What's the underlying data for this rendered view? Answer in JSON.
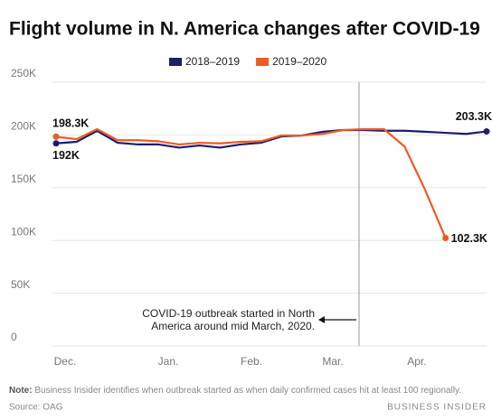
{
  "chart_data": {
    "type": "line",
    "title": "Flight volume in N. America changes after COVID-19",
    "x": [
      0,
      1,
      2,
      3,
      4,
      5,
      6,
      7,
      8,
      9,
      10,
      11,
      12,
      13,
      14,
      15,
      16,
      17,
      18,
      19,
      20,
      21
    ],
    "xlim": [
      0,
      21
    ],
    "xticks": [
      {
        "value": 0.44,
        "label": "Dec."
      },
      {
        "value": 5.47,
        "label": "Jan."
      },
      {
        "value": 9.53,
        "label": "Feb."
      },
      {
        "value": 13.5,
        "label": "Mar."
      },
      {
        "value": 17.6,
        "label": "Apr."
      }
    ],
    "ylim": [
      0,
      250000
    ],
    "yticks": [
      {
        "value": 0,
        "label": "0"
      },
      {
        "value": 50000,
        "label": "50K"
      },
      {
        "value": 100000,
        "label": "100K"
      },
      {
        "value": 150000,
        "label": "150K"
      },
      {
        "value": 200000,
        "label": "200K"
      },
      {
        "value": 250000,
        "label": "250K"
      }
    ],
    "grid": true,
    "legend": "top",
    "series": [
      {
        "name": "2018–2019",
        "color": "#1b1e6e",
        "values": [
          192000,
          193500,
          203800,
          192600,
          191000,
          191000,
          188000,
          190000,
          188000,
          191000,
          192600,
          198600,
          199500,
          203000,
          204600,
          204600,
          204000,
          204000,
          203000,
          202000,
          201000,
          203300
        ],
        "value_labels": [
          "192K",
          null,
          null,
          null,
          null,
          null,
          null,
          null,
          null,
          null,
          null,
          null,
          null,
          null,
          null,
          null,
          null,
          null,
          null,
          null,
          null,
          "203.3K"
        ]
      },
      {
        "name": "2019–2020",
        "color": "#ee5a24",
        "values": [
          198300,
          196000,
          205500,
          195000,
          195000,
          194000,
          191000,
          192600,
          192000,
          193500,
          194000,
          199500,
          199500,
          201000,
          204600,
          205500,
          205500,
          189000,
          148000,
          102300,
          null,
          null
        ],
        "value_labels": [
          "198.3K",
          null,
          null,
          null,
          null,
          null,
          null,
          null,
          null,
          null,
          null,
          null,
          null,
          null,
          null,
          null,
          null,
          null,
          null,
          "102.3K",
          null,
          null
        ]
      }
    ],
    "annotation": "COVID-19 outbreak started in North America around mid March, 2020.",
    "note_label": "Note:",
    "note": "Business Insider identifies when outbreak started as when daily confirmed cases hit at least 100 regionally.",
    "source": "Source: OAG",
    "brand": "BUSINESS INSIDER"
  }
}
